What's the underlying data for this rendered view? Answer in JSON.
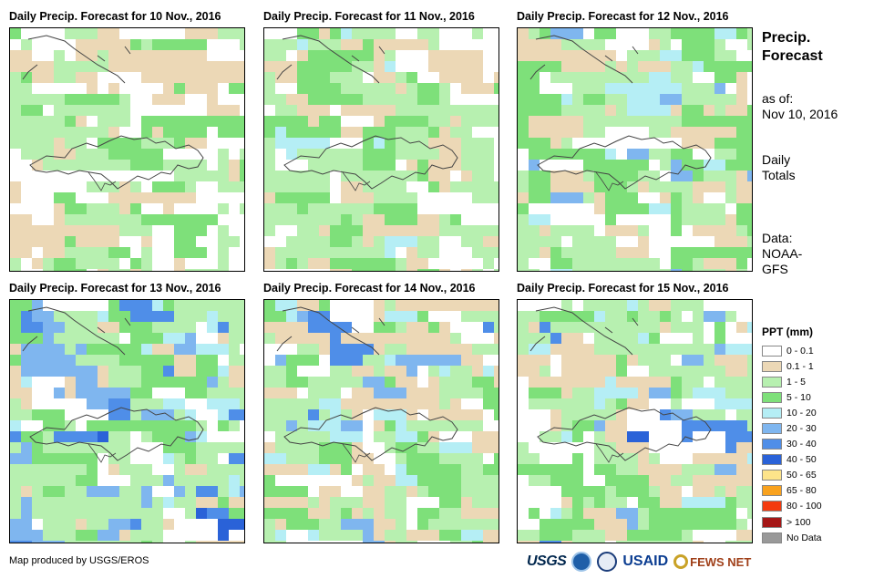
{
  "panels": [
    {
      "title": "Daily Precip. Forecast for 10 Nov., 2016"
    },
    {
      "title": "Daily Precip. Forecast for 11 Nov., 2016"
    },
    {
      "title": "Daily Precip. Forecast for 12 Nov., 2016"
    },
    {
      "title": "Daily Precip. Forecast for 13 Nov., 2016"
    },
    {
      "title": "Daily Precip. Forecast for 14 Nov., 2016"
    },
    {
      "title": "Daily Precip. Forecast for 15 Nov., 2016"
    }
  ],
  "side": {
    "title_line1": "Precip.",
    "title_line2": "Forecast",
    "asof_line1": "as of:",
    "asof_line2": "Nov 10, 2016",
    "totals_line1": "Daily",
    "totals_line2": "Totals",
    "data_line1": "Data:",
    "data_line2": "NOAA-",
    "data_line3": "GFS"
  },
  "legend": {
    "title": "PPT (mm)",
    "items": [
      {
        "label": "0 - 0.1",
        "color": "#ffffff"
      },
      {
        "label": "0.1 - 1",
        "color": "#ecd8b6"
      },
      {
        "label": "1 - 5",
        "color": "#b7f0b0"
      },
      {
        "label": "5 - 10",
        "color": "#7ee07a"
      },
      {
        "label": "10 - 20",
        "color": "#b5eef5"
      },
      {
        "label": "20 - 30",
        "color": "#7fb6ef"
      },
      {
        "label": "30 - 40",
        "color": "#4f8ee8"
      },
      {
        "label": "40 - 50",
        "color": "#2a62d8"
      },
      {
        "label": "50 - 65",
        "color": "#fde48a"
      },
      {
        "label": "65 - 80",
        "color": "#f9a21e"
      },
      {
        "label": "80 - 100",
        "color": "#f43a0e"
      },
      {
        "label": "> 100",
        "color": "#a51717"
      },
      {
        "label": "No Data",
        "color": "#999999"
      }
    ]
  },
  "credit": "Map produced by USGS/EROS",
  "logos": {
    "usgs": "USGS",
    "usaid": "USAID",
    "fews": "FEWS NET"
  }
}
